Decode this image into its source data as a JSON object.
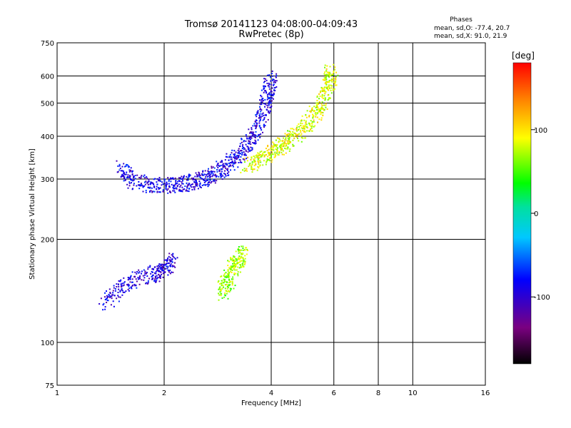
{
  "header": {
    "title_line1": "Tromsø 20141123 04:08:00-04:09:43",
    "title_line2": "RwPretec (8p)"
  },
  "phases_box": {
    "title": "Phases",
    "line_o": "mean, sd,O: -77.4, 20.7",
    "line_x": "mean, sd,X:  91.0, 21.9"
  },
  "colorbar": {
    "unit_label": "[deg]",
    "min": -180,
    "max": 180,
    "ticks": [
      {
        "value": 100,
        "label": "100"
      },
      {
        "value": 0,
        "label": "0"
      },
      {
        "value": -100,
        "label": "-100"
      }
    ]
  },
  "chart_data": {
    "type": "scatter",
    "title": "Tromsø 20141123 04:08:00-04:09:43",
    "subtitle": "RwPretec (8p)",
    "xlabel": "Frequency [MHz]",
    "ylabel": "Stationary phase Virtual Height [km]",
    "xscale": "log",
    "yscale": "log",
    "xlim": [
      1,
      16
    ],
    "ylim": [
      75,
      750
    ],
    "grid": true,
    "x_ticks": [
      1,
      2,
      4,
      6,
      8,
      10,
      16
    ],
    "x_tick_labels": [
      "1",
      "2",
      "4",
      "6",
      "8",
      "10",
      "16"
    ],
    "y_ticks": [
      75,
      100,
      200,
      300,
      400,
      500,
      600,
      750
    ],
    "y_tick_labels": [
      "75",
      "100",
      "200",
      "300",
      "400",
      "500",
      "600",
      "750"
    ],
    "color_encoding": "phase [deg], rainbow colormap from black (-180) through purple, blue, cyan, green, yellow to red (180)",
    "traces": [
      {
        "desc": "O-mode F-region trace",
        "phase": -90,
        "points": [
          [
            1.5,
            330
          ],
          [
            1.6,
            300
          ],
          [
            1.8,
            290
          ],
          [
            2.0,
            288
          ],
          [
            2.2,
            290
          ],
          [
            2.4,
            295
          ],
          [
            2.6,
            302
          ],
          [
            2.8,
            315
          ],
          [
            3.0,
            330
          ],
          [
            3.2,
            350
          ],
          [
            3.4,
            380
          ],
          [
            3.6,
            420
          ],
          [
            3.8,
            480
          ],
          [
            3.9,
            540
          ],
          [
            4.0,
            600
          ]
        ]
      },
      {
        "desc": "O-mode E/Es trace",
        "phase": -95,
        "points": [
          [
            1.35,
            130
          ],
          [
            1.5,
            145
          ],
          [
            1.7,
            155
          ],
          [
            1.9,
            160
          ],
          [
            2.0,
            165
          ],
          [
            2.1,
            175
          ]
        ]
      },
      {
        "desc": "X-mode F-region trace",
        "phase": 85,
        "points": [
          [
            3.4,
            330
          ],
          [
            3.7,
            345
          ],
          [
            4.0,
            360
          ],
          [
            4.3,
            380
          ],
          [
            4.6,
            400
          ],
          [
            5.0,
            430
          ],
          [
            5.3,
            470
          ],
          [
            5.6,
            520
          ],
          [
            5.8,
            580
          ],
          [
            5.9,
            630
          ]
        ]
      },
      {
        "desc": "X-mode E trace",
        "phase": 70,
        "points": [
          [
            2.9,
            140
          ],
          [
            3.0,
            150
          ],
          [
            3.1,
            165
          ],
          [
            3.2,
            175
          ],
          [
            3.3,
            185
          ]
        ]
      }
    ]
  }
}
